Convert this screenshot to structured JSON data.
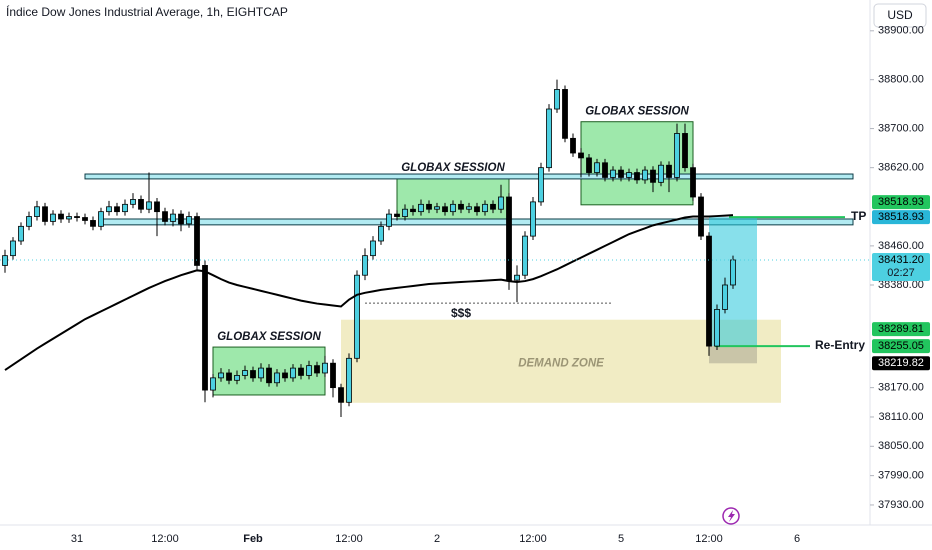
{
  "chart_data": {
    "type": "candlestick",
    "title": "Índice Dow Jones Industrial Average, 1h, EIGHTCAP",
    "currency": "USD",
    "up_color": "#4dd0e1",
    "down_color": "#000000",
    "categories": [
      null,
      null,
      null,
      null,
      null,
      null,
      null,
      null,
      null,
      "31",
      null,
      null,
      null,
      null,
      null,
      null,
      null,
      null,
      null,
      null,
      "12:00",
      null,
      null,
      null,
      null,
      null,
      null,
      null,
      null,
      null,
      null,
      "Feb",
      null,
      null,
      null,
      null,
      null,
      null,
      null,
      null,
      null,
      null,
      null,
      "12:00",
      null,
      null,
      null,
      null,
      null,
      null,
      null,
      null,
      null,
      null,
      "2",
      null,
      null,
      null,
      null,
      null,
      null,
      null,
      null,
      null,
      null,
      null,
      "12:00",
      null,
      null,
      null,
      null,
      null,
      null,
      null,
      null,
      null,
      null,
      "5",
      null,
      null,
      null,
      null,
      null,
      null,
      null,
      null,
      null,
      null,
      "12:00",
      null,
      null,
      null,
      null,
      null,
      null,
      null,
      null,
      null,
      null,
      "6"
    ],
    "ohlc": [
      [
        38420,
        38452,
        38405,
        38440
      ],
      [
        38440,
        38478,
        38432,
        38470
      ],
      [
        38470,
        38508,
        38462,
        38500
      ],
      [
        38500,
        38530,
        38492,
        38520
      ],
      [
        38520,
        38552,
        38512,
        38540
      ],
      [
        38540,
        38548,
        38502,
        38510
      ],
      [
        38510,
        38533,
        38502,
        38525
      ],
      [
        38525,
        38533,
        38507,
        38515
      ],
      [
        38515,
        38528,
        38507,
        38520
      ],
      [
        38520,
        38528,
        38510,
        38518
      ],
      [
        38518,
        38526,
        38504,
        38512
      ],
      [
        38512,
        38520,
        38492,
        38500
      ],
      [
        38500,
        38538,
        38492,
        38530
      ],
      [
        38530,
        38552,
        38522,
        38540
      ],
      [
        38540,
        38548,
        38522,
        38530
      ],
      [
        38530,
        38555,
        38522,
        38545
      ],
      [
        38545,
        38568,
        38537,
        38555
      ],
      [
        38555,
        38563,
        38527,
        38535
      ],
      [
        38535,
        38610,
        38527,
        38550
      ],
      [
        38550,
        38558,
        38480,
        38530
      ],
      [
        38530,
        38538,
        38502,
        38510
      ],
      [
        38510,
        38535,
        38500,
        38525
      ],
      [
        38525,
        38533,
        38490,
        38505
      ],
      [
        38505,
        38530,
        38497,
        38520
      ],
      [
        38520,
        38528,
        38412,
        38420
      ],
      [
        38420,
        38430,
        38140,
        38165
      ],
      [
        38165,
        38198,
        38150,
        38190
      ],
      [
        38190,
        38210,
        38182,
        38200
      ],
      [
        38200,
        38208,
        38177,
        38185
      ],
      [
        38185,
        38205,
        38177,
        38195
      ],
      [
        38195,
        38215,
        38187,
        38205
      ],
      [
        38205,
        38213,
        38182,
        38190
      ],
      [
        38190,
        38220,
        38182,
        38210
      ],
      [
        38210,
        38218,
        38172,
        38180
      ],
      [
        38180,
        38208,
        38172,
        38200
      ],
      [
        38200,
        38208,
        38182,
        38190
      ],
      [
        38190,
        38218,
        38182,
        38210
      ],
      [
        38210,
        38218,
        38187,
        38195
      ],
      [
        38195,
        38225,
        38187,
        38215
      ],
      [
        38215,
        38223,
        38192,
        38200
      ],
      [
        38200,
        38235,
        38192,
        38220
      ],
      [
        38220,
        38228,
        38150,
        38170
      ],
      [
        38170,
        38178,
        38110,
        38140
      ],
      [
        38140,
        38240,
        38132,
        38230
      ],
      [
        38230,
        38410,
        38222,
        38400
      ],
      [
        38400,
        38455,
        38390,
        38440
      ],
      [
        38440,
        38480,
        38432,
        38470
      ],
      [
        38470,
        38510,
        38462,
        38500
      ],
      [
        38500,
        38535,
        38492,
        38525
      ],
      [
        38525,
        38533,
        38512,
        38520
      ],
      [
        38520,
        38545,
        38512,
        38535
      ],
      [
        38535,
        38543,
        38522,
        38530
      ],
      [
        38530,
        38555,
        38522,
        38545
      ],
      [
        38545,
        38553,
        38527,
        38535
      ],
      [
        38535,
        38548,
        38527,
        38540
      ],
      [
        38540,
        38548,
        38522,
        38530
      ],
      [
        38530,
        38553,
        38522,
        38545
      ],
      [
        38545,
        38553,
        38527,
        38535
      ],
      [
        38535,
        38548,
        38527,
        38540
      ],
      [
        38540,
        38548,
        38522,
        38530
      ],
      [
        38530,
        38553,
        38522,
        38545
      ],
      [
        38545,
        38553,
        38527,
        38535
      ],
      [
        38535,
        38585,
        38527,
        38560
      ],
      [
        38560,
        38568,
        38370,
        38390
      ],
      [
        38390,
        38420,
        38345,
        38400
      ],
      [
        38400,
        38490,
        38392,
        38480
      ],
      [
        38480,
        38560,
        38472,
        38550
      ],
      [
        38550,
        38630,
        38542,
        38620
      ],
      [
        38620,
        38750,
        38612,
        38740
      ],
      [
        38740,
        38800,
        38732,
        38780
      ],
      [
        38780,
        38788,
        38672,
        38680
      ],
      [
        38680,
        38690,
        38642,
        38650
      ],
      [
        38650,
        38660,
        38600,
        38640
      ],
      [
        38640,
        38648,
        38602,
        38610
      ],
      [
        38610,
        38638,
        38602,
        38630
      ],
      [
        38630,
        38638,
        38592,
        38600
      ],
      [
        38600,
        38623,
        38592,
        38615
      ],
      [
        38615,
        38623,
        38592,
        38600
      ],
      [
        38600,
        38618,
        38592,
        38610
      ],
      [
        38610,
        38618,
        38587,
        38595
      ],
      [
        38595,
        38623,
        38587,
        38615
      ],
      [
        38615,
        38623,
        38570,
        38590
      ],
      [
        38590,
        38633,
        38582,
        38625
      ],
      [
        38625,
        38633,
        38570,
        38600
      ],
      [
        38600,
        38710,
        38592,
        38690
      ],
      [
        38690,
        38710,
        38612,
        38620
      ],
      [
        38620,
        38628,
        38552,
        38560
      ],
      [
        38560,
        38568,
        38472,
        38480
      ],
      [
        38480,
        38488,
        38235,
        38255
      ],
      [
        38255,
        38340,
        38247,
        38330
      ],
      [
        38330,
        38395,
        38322,
        38380
      ],
      [
        38380,
        38440,
        38372,
        38431.2
      ]
    ],
    "ma": {
      "color": "#000000",
      "values": [
        38206,
        38217,
        38228,
        38239,
        38250,
        38260,
        38270,
        38280,
        38290,
        38300,
        38310,
        38318,
        38326,
        38334,
        38342,
        38350,
        38358,
        38366,
        38374,
        38381,
        38388,
        38394,
        38400,
        38405,
        38410,
        38408,
        38400,
        38392,
        38385,
        38380,
        38376,
        38372,
        38368,
        38364,
        38360,
        38356,
        38352,
        38348,
        38345,
        38342,
        38340,
        38338,
        38336,
        38350,
        38360,
        38364,
        38367,
        38370,
        38372,
        38374,
        38376,
        38378,
        38380,
        38382,
        38383,
        38384,
        38385,
        38386,
        38387,
        38388,
        38389,
        38390,
        38391,
        38388,
        38386,
        38388,
        38392,
        38398,
        38405,
        38412,
        38420,
        38428,
        38436,
        38444,
        38452,
        38460,
        38468,
        38476,
        38484,
        38490,
        38496,
        38502,
        38506,
        38510,
        38514,
        38518,
        38520,
        38520,
        38520,
        38521,
        38522,
        38523
      ]
    },
    "ylim": [
      37889,
      38963
    ],
    "yticks": [
      {
        "value": 38900,
        "label": "38900.00"
      },
      {
        "value": 38800,
        "label": "38800.00"
      },
      {
        "value": 38700,
        "label": "38700.00"
      },
      {
        "value": 38620,
        "label": "38620.00"
      },
      {
        "value": 38460,
        "label": "38460.00"
      },
      {
        "value": 38380,
        "label": "38380.00"
      },
      {
        "value": 38170,
        "label": "38170.00"
      },
      {
        "value": 38110,
        "label": "38110.00"
      },
      {
        "value": 38050,
        "label": "38050.00"
      },
      {
        "value": 37990,
        "label": "37990.00"
      },
      {
        "value": 37930,
        "label": "37930.00"
      }
    ],
    "levels": [
      {
        "low": 38597,
        "high": 38607,
        "from": 10,
        "to": 106
      },
      {
        "low": 38503,
        "high": 38515,
        "from": 12,
        "to": 106
      }
    ],
    "zones": [
      {
        "label": "GLOBAX SESSION",
        "low": 38155,
        "high": 38253,
        "from": 26,
        "to": 40,
        "color": "#7ee08f"
      },
      {
        "label": "GLOBAX SESSION",
        "low": 38509,
        "high": 38599,
        "from": 49,
        "to": 63,
        "color": "#7ee08f"
      },
      {
        "label": "GLOBAX SESSION",
        "low": 38544,
        "high": 38714,
        "from": 72,
        "to": 86,
        "color": "#7ee08f"
      },
      {
        "label": "DEMAND ZONE",
        "low": 38139,
        "high": 38309,
        "from": 42,
        "to": 97,
        "color": "#ece5b0"
      }
    ],
    "liquidity": {
      "label": "$$$",
      "value": 38343,
      "from": 45,
      "to": 76
    },
    "trade": {
      "target": 38518.93,
      "entry": 38255.05,
      "stop": 38219.82,
      "from": 88,
      "to": 94,
      "tp_label": "TP",
      "entry_label": "Re-Entry"
    },
    "tags": [
      {
        "value": 38518.93,
        "color": "#22c55e",
        "shift": -1
      },
      {
        "value": 38518.93,
        "color": "#29b6d8",
        "shift": 0
      },
      {
        "value": 38431.2,
        "label": "38431.20",
        "countdown": "02:27",
        "color": "#4dd0e1",
        "shift": 0
      },
      {
        "value": 38289.81,
        "color": "#22c55e",
        "shift": 0
      },
      {
        "value": 38255.05,
        "color": "#22c55e",
        "shift": 0
      },
      {
        "value": 38219.82,
        "color": "#000000",
        "shift": 0
      }
    ]
  }
}
